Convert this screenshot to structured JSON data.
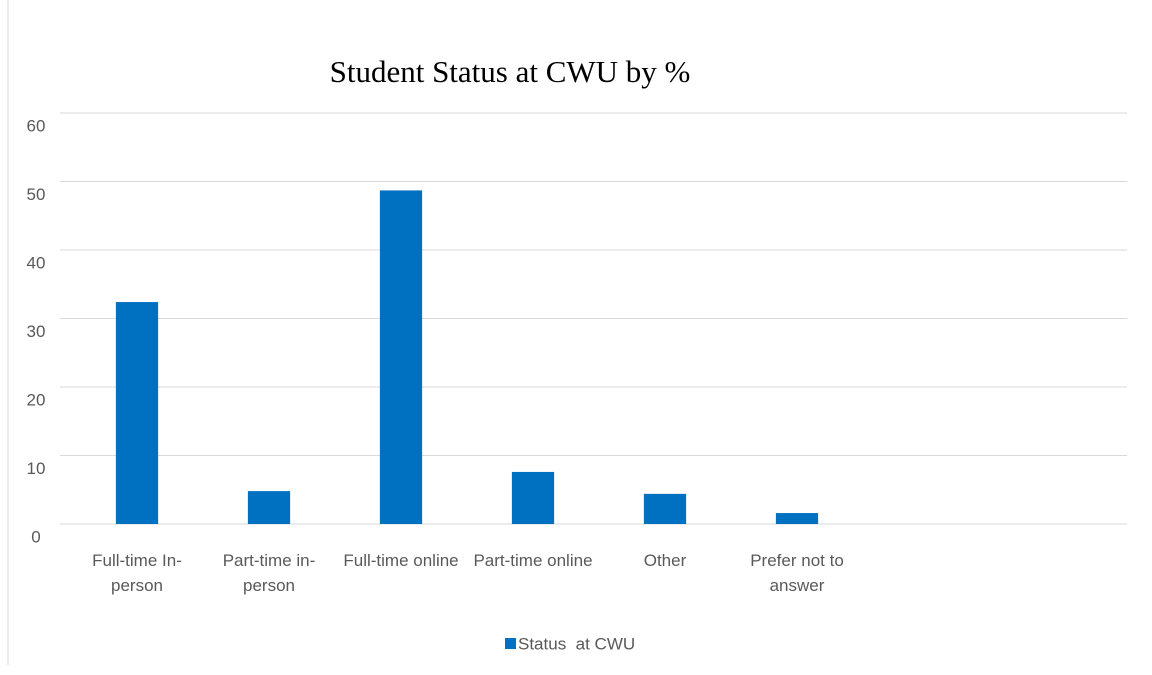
{
  "chart_data": {
    "type": "bar",
    "title": "Student Status at CWU by %",
    "categories": [
      "Full-time In-person",
      "Part-time in-person",
      "Full-time online",
      "Part-time online",
      "Other",
      "Prefer not to answer",
      null,
      null
    ],
    "series": [
      {
        "name": "Status  at CWU",
        "color": "#0070c0",
        "values": [
          32.4,
          4.8,
          48.7,
          7.6,
          4.4,
          1.6,
          null,
          null
        ]
      }
    ],
    "ylim": [
      0,
      60
    ],
    "yticks": [
      0,
      10,
      20,
      30,
      40,
      50,
      60
    ],
    "grid": true,
    "legend": "bottom"
  }
}
